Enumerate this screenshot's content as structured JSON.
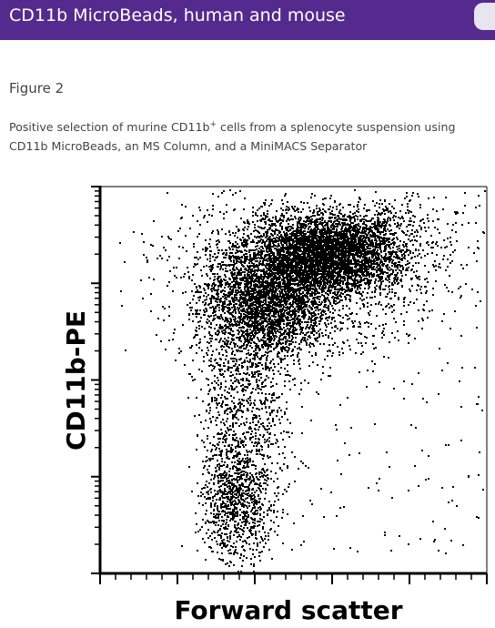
{
  "header": {
    "title": "CD11b MicroBeads, human and mouse"
  },
  "figure": {
    "label": "Figure 2",
    "caption_before": "Positive selection of murine CD11b",
    "caption_sup": "+",
    "caption_after": " cells from a splenocyte suspension using CD11b MicroBeads, an MS Column, and a MiniMACS Separator",
    "plot": {
      "x_label": "Forward scatter",
      "y_label": "CD11b-PE"
    }
  }
}
